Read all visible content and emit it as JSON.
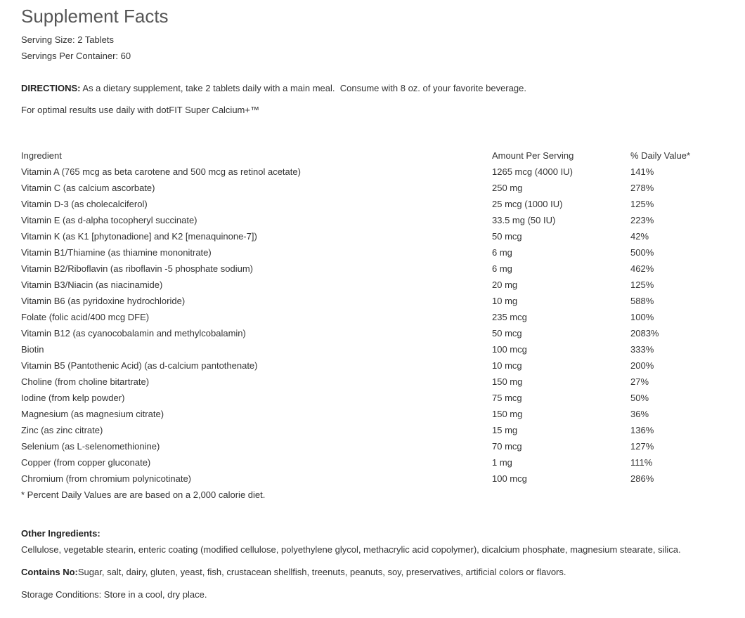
{
  "title": "Supplement Facts",
  "serving_size": "Serving Size: 2 Tablets",
  "servings_per_container": "Servings Per Container: 60",
  "directions": {
    "label": "DIRECTIONS:",
    "text": " As a dietary supplement, take 2 tablets daily with a main meal.  Consume with 8 oz. of your favorite beverage."
  },
  "note": "For optimal results use daily with dotFIT Super Calcium+™",
  "table": {
    "header": [
      "Ingredient",
      "Amount Per Serving",
      "% Daily Value*"
    ],
    "rows": [
      [
        "Vitamin A (765 mcg as beta carotene and 500 mcg as retinol acetate)",
        "1265 mcg (4000 IU)",
        "141%"
      ],
      [
        "Vitamin C (as calcium ascorbate)",
        "250 mg",
        "278%"
      ],
      [
        "Vitamin D-3 (as cholecalciferol)",
        "25 mcg (1000 IU)",
        "125%"
      ],
      [
        "Vitamin E (as d-alpha tocopheryl succinate)",
        "33.5 mg (50 IU)",
        "223%"
      ],
      [
        "Vitamin K (as K1 [phytonadione] and K2 [menaquinone-7])",
        "50 mcg",
        "42%"
      ],
      [
        "Vitamin B1/Thiamine (as thiamine mononitrate)",
        "6 mg",
        "500%"
      ],
      [
        "Vitamin B2/Riboflavin (as riboflavin -5 phosphate sodium)",
        "6 mg",
        "462%"
      ],
      [
        "Vitamin B3/Niacin (as niacinamide)",
        "20 mg",
        "125%"
      ],
      [
        "Vitamin B6 (as pyridoxine hydrochloride)",
        "10 mg",
        "588%"
      ],
      [
        "Folate (folic acid/400 mcg DFE)",
        "235 mcg",
        "100%"
      ],
      [
        "Vitamin B12 (as cyanocobalamin and methylcobalamin)",
        "50 mcg",
        "2083%"
      ],
      [
        "Biotin",
        "100 mcg",
        "333%"
      ],
      [
        "Vitamin B5 (Pantothenic Acid) (as d-calcium pantothenate)",
        "10 mcg",
        "200%"
      ],
      [
        "Choline (from choline bitartrate)",
        "150 mg",
        "27%"
      ],
      [
        "Iodine (from kelp powder)",
        "75 mcg",
        "50%"
      ],
      [
        "Magnesium (as magnesium citrate)",
        "150 mg",
        "36%"
      ],
      [
        "Zinc (as zinc citrate)",
        "15 mg",
        "136%"
      ],
      [
        "Selenium (as L-selenomethionine)",
        "70 mcg",
        "127%"
      ],
      [
        "Copper (from copper gluconate)",
        "1 mg",
        "111%"
      ],
      [
        "Chromium (from chromium polynicotinate)",
        "100 mcg",
        "286%"
      ]
    ],
    "footnote": "* Percent Daily Values are are based on a 2,000 calorie diet."
  },
  "other_ingredients": {
    "label": "Other Ingredients:",
    "text": "Cellulose, vegetable stearin, enteric coating (modified cellulose, polyethylene glycol, methacrylic acid copolymer), dicalcium phosphate, magnesium stearate, silica."
  },
  "contains_no": {
    "label": "Contains No:",
    "text": "Sugar, salt, dairy, gluten, yeast, fish, crustacean shellfish, treenuts, peanuts, soy, preservatives, artificial colors or flavors."
  },
  "storage": "Storage Conditions: Store in a cool, dry place."
}
